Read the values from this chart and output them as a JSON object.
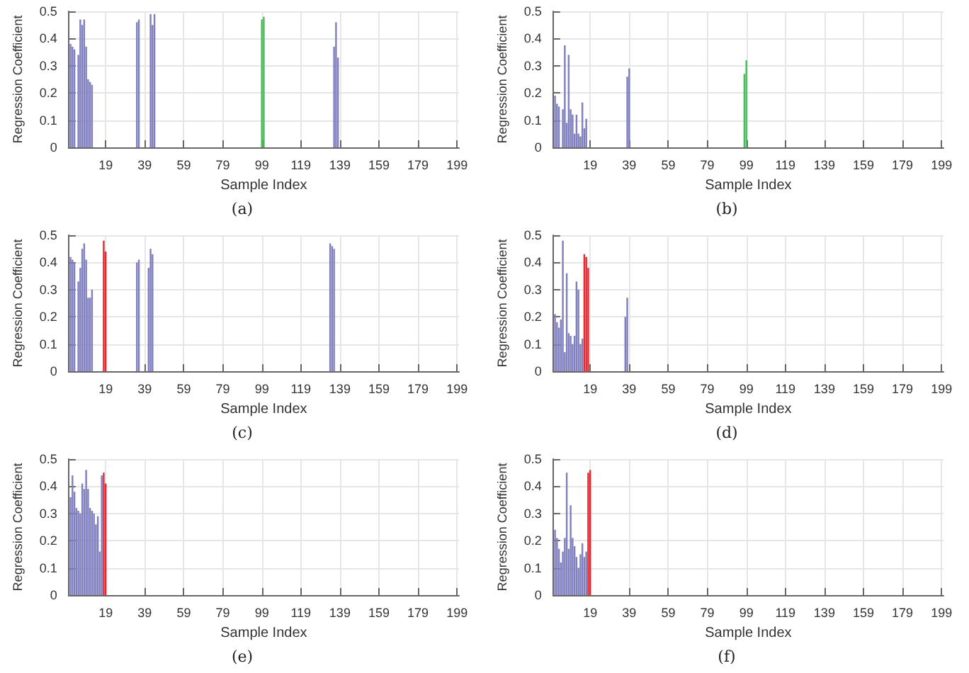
{
  "chart_data": [
    {
      "type": "bar",
      "title": "(a)",
      "xlabel": "Sample Index",
      "ylabel": "Regression Coefficient",
      "xlim": [
        0,
        200
      ],
      "xticks": [
        19,
        39,
        59,
        79,
        99,
        119,
        139,
        159,
        179,
        199
      ],
      "ylim": [
        0,
        0.5
      ],
      "yticks": [
        0,
        0.1,
        0.2,
        0.3,
        0.4,
        0.5
      ],
      "grid": true,
      "series": [
        {
          "color": "#8080c0",
          "x": [
            1,
            2,
            3,
            5,
            6,
            7,
            8,
            9,
            10,
            11,
            12,
            35,
            36,
            42,
            43,
            44,
            136,
            137,
            138
          ],
          "values": [
            0.38,
            0.37,
            0.36,
            0.34,
            0.47,
            0.45,
            0.47,
            0.37,
            0.25,
            0.24,
            0.23,
            0.46,
            0.47,
            0.49,
            0.45,
            0.49,
            0.37,
            0.46,
            0.33
          ]
        },
        {
          "color": "#4cbb5a",
          "x": [
            99,
            100
          ],
          "values": [
            0.47,
            0.48
          ]
        }
      ]
    },
    {
      "type": "bar",
      "title": "(b)",
      "xlabel": "Sample Index",
      "ylabel": "Regression Coefficient",
      "xlim": [
        0,
        200
      ],
      "xticks": [
        19,
        39,
        59,
        79,
        99,
        119,
        139,
        159,
        179,
        199
      ],
      "ylim": [
        0,
        0.5
      ],
      "yticks": [
        0,
        0.1,
        0.2,
        0.3,
        0.4,
        0.5
      ],
      "grid": true,
      "series": [
        {
          "color": "#8080c0",
          "x": [
            1,
            2,
            3,
            5,
            6,
            7,
            8,
            9,
            10,
            11,
            12,
            13,
            14,
            15,
            16,
            17,
            38,
            39
          ],
          "values": [
            0.19,
            0.16,
            0.15,
            0.14,
            0.375,
            0.09,
            0.34,
            0.14,
            0.12,
            0.05,
            0.12,
            0.05,
            0.04,
            0.165,
            0.07,
            0.105,
            0.26,
            0.29
          ]
        },
        {
          "color": "#4cbb5a",
          "x": [
            98,
            99
          ],
          "values": [
            0.27,
            0.32
          ]
        }
      ]
    },
    {
      "type": "bar",
      "title": "(c)",
      "xlabel": "Sample Index",
      "ylabel": "Regression Coefficient",
      "xlim": [
        0,
        200
      ],
      "xticks": [
        19,
        39,
        59,
        79,
        99,
        119,
        139,
        159,
        179,
        199
      ],
      "ylim": [
        0,
        0.5
      ],
      "yticks": [
        0,
        0.1,
        0.2,
        0.3,
        0.4,
        0.5
      ],
      "grid": true,
      "series": [
        {
          "color": "#8080c0",
          "x": [
            1,
            2,
            3,
            5,
            6,
            7,
            8,
            9,
            10,
            11,
            12,
            35,
            36,
            41,
            42,
            43,
            134,
            135,
            136
          ],
          "values": [
            0.42,
            0.41,
            0.4,
            0.33,
            0.38,
            0.45,
            0.47,
            0.41,
            0.27,
            0.27,
            0.3,
            0.4,
            0.41,
            0.38,
            0.45,
            0.43,
            0.47,
            0.46,
            0.45
          ]
        },
        {
          "color": "#e8282e",
          "x": [
            18,
            19
          ],
          "values": [
            0.48,
            0.44
          ]
        }
      ]
    },
    {
      "type": "bar",
      "title": "(d)",
      "xlabel": "Sample Index",
      "ylabel": "Regression Coefficient",
      "xlim": [
        0,
        200
      ],
      "xticks": [
        19,
        39,
        59,
        79,
        99,
        119,
        139,
        159,
        179,
        199
      ],
      "ylim": [
        0,
        0.5
      ],
      "yticks": [
        0,
        0.1,
        0.2,
        0.3,
        0.4,
        0.5
      ],
      "grid": true,
      "series": [
        {
          "color": "#8080c0",
          "x": [
            1,
            2,
            3,
            4,
            5,
            6,
            7,
            8,
            9,
            10,
            11,
            12,
            13,
            14,
            15,
            37,
            38
          ],
          "values": [
            0.21,
            0.18,
            0.16,
            0.19,
            0.48,
            0.07,
            0.36,
            0.14,
            0.13,
            0.1,
            0.13,
            0.33,
            0.3,
            0.1,
            0.12,
            0.2,
            0.27
          ]
        },
        {
          "color": "#e8282e",
          "x": [
            16,
            17,
            18
          ],
          "values": [
            0.43,
            0.42,
            0.38
          ]
        }
      ]
    },
    {
      "type": "bar",
      "title": "(e)",
      "xlabel": "Sample Index",
      "ylabel": "Regression Coefficient",
      "xlim": [
        0,
        200
      ],
      "xticks": [
        19,
        39,
        59,
        79,
        99,
        119,
        139,
        159,
        179,
        199
      ],
      "ylim": [
        0,
        0.5
      ],
      "yticks": [
        0,
        0.1,
        0.2,
        0.3,
        0.4,
        0.5
      ],
      "grid": true,
      "series": [
        {
          "color": "#8080c0",
          "x": [
            1,
            2,
            3,
            4,
            5,
            6,
            7,
            8,
            9,
            10,
            11,
            12,
            13,
            14,
            15,
            16,
            17
          ],
          "values": [
            0.36,
            0.44,
            0.38,
            0.32,
            0.31,
            0.3,
            0.41,
            0.39,
            0.46,
            0.39,
            0.32,
            0.31,
            0.3,
            0.26,
            0.29,
            0.16,
            0.44
          ]
        },
        {
          "color": "#e8282e",
          "x": [
            18,
            19
          ],
          "values": [
            0.45,
            0.41
          ]
        }
      ]
    },
    {
      "type": "bar",
      "title": "(f)",
      "xlabel": "Sample Index",
      "ylabel": "Regression Coefficient",
      "xlim": [
        0,
        200
      ],
      "xticks": [
        19,
        39,
        59,
        79,
        99,
        119,
        139,
        159,
        179,
        199
      ],
      "ylim": [
        0,
        0.5
      ],
      "yticks": [
        0,
        0.1,
        0.2,
        0.3,
        0.4,
        0.5
      ],
      "grid": true,
      "series": [
        {
          "color": "#8080c0",
          "x": [
            1,
            2,
            3,
            4,
            5,
            6,
            7,
            8,
            9,
            10,
            11,
            12,
            13,
            14,
            15,
            16,
            17
          ],
          "values": [
            0.24,
            0.21,
            0.17,
            0.12,
            0.16,
            0.21,
            0.45,
            0.17,
            0.33,
            0.21,
            0.18,
            0.14,
            0.1,
            0.15,
            0.19,
            0.14,
            0.16
          ]
        },
        {
          "color": "#e8282e",
          "x": [
            18,
            19
          ],
          "values": [
            0.45,
            0.46
          ]
        }
      ]
    }
  ]
}
